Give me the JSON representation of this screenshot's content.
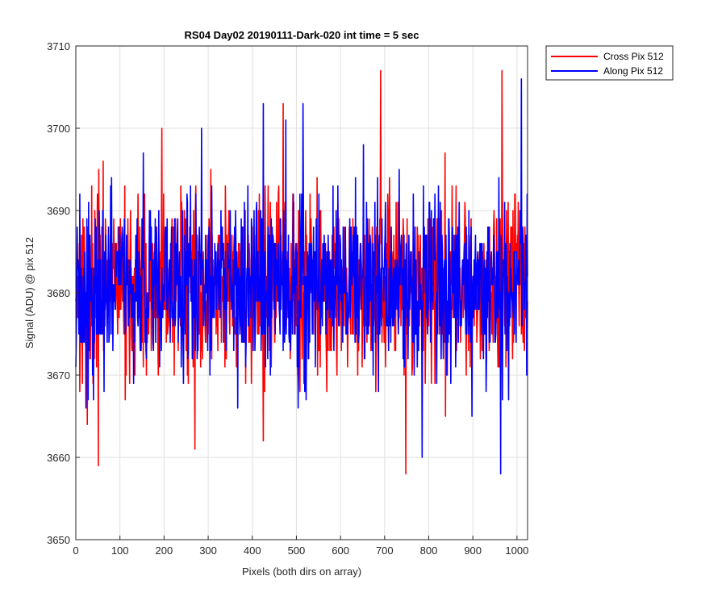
{
  "chart_data": {
    "type": "line",
    "title": "RS04 Day02 20190111-Dark-020 int time = 5 sec",
    "xlabel": "Pixels (both dirs on array)",
    "ylabel": "Signal (ADU) @ pix 512",
    "xlim": [
      0,
      1024
    ],
    "ylim": [
      3650,
      3710
    ],
    "xticks": [
      0,
      100,
      200,
      300,
      400,
      500,
      600,
      700,
      800,
      900,
      1000
    ],
    "yticks": [
      3650,
      3660,
      3670,
      3680,
      3690,
      3700,
      3710
    ],
    "grid": true,
    "legend_position": "outside-top-right",
    "series": [
      {
        "name": "Cross Pix 512",
        "color": "#ff0000",
        "noise_mean": 3681,
        "noise_sd": 5.5,
        "seed": 17,
        "peaks": [
          [
            26,
            3664
          ],
          [
            51,
            3659
          ],
          [
            62,
            3696
          ],
          [
            195,
            3700
          ],
          [
            270,
            3661
          ],
          [
            425,
            3662
          ],
          [
            470,
            3703
          ],
          [
            691,
            3707
          ],
          [
            748,
            3658
          ],
          [
            966,
            3707
          ]
        ]
      },
      {
        "name": "Along Pix 512",
        "color": "#0000ff",
        "noise_mean": 3681,
        "noise_sd": 5.5,
        "seed": 91,
        "peaks": [
          [
            40,
            3667
          ],
          [
            285,
            3700
          ],
          [
            425,
            3703
          ],
          [
            476,
            3701
          ],
          [
            515,
            3703
          ],
          [
            785,
            3660
          ],
          [
            963,
            3658
          ],
          [
            1010,
            3706
          ]
        ]
      }
    ]
  }
}
